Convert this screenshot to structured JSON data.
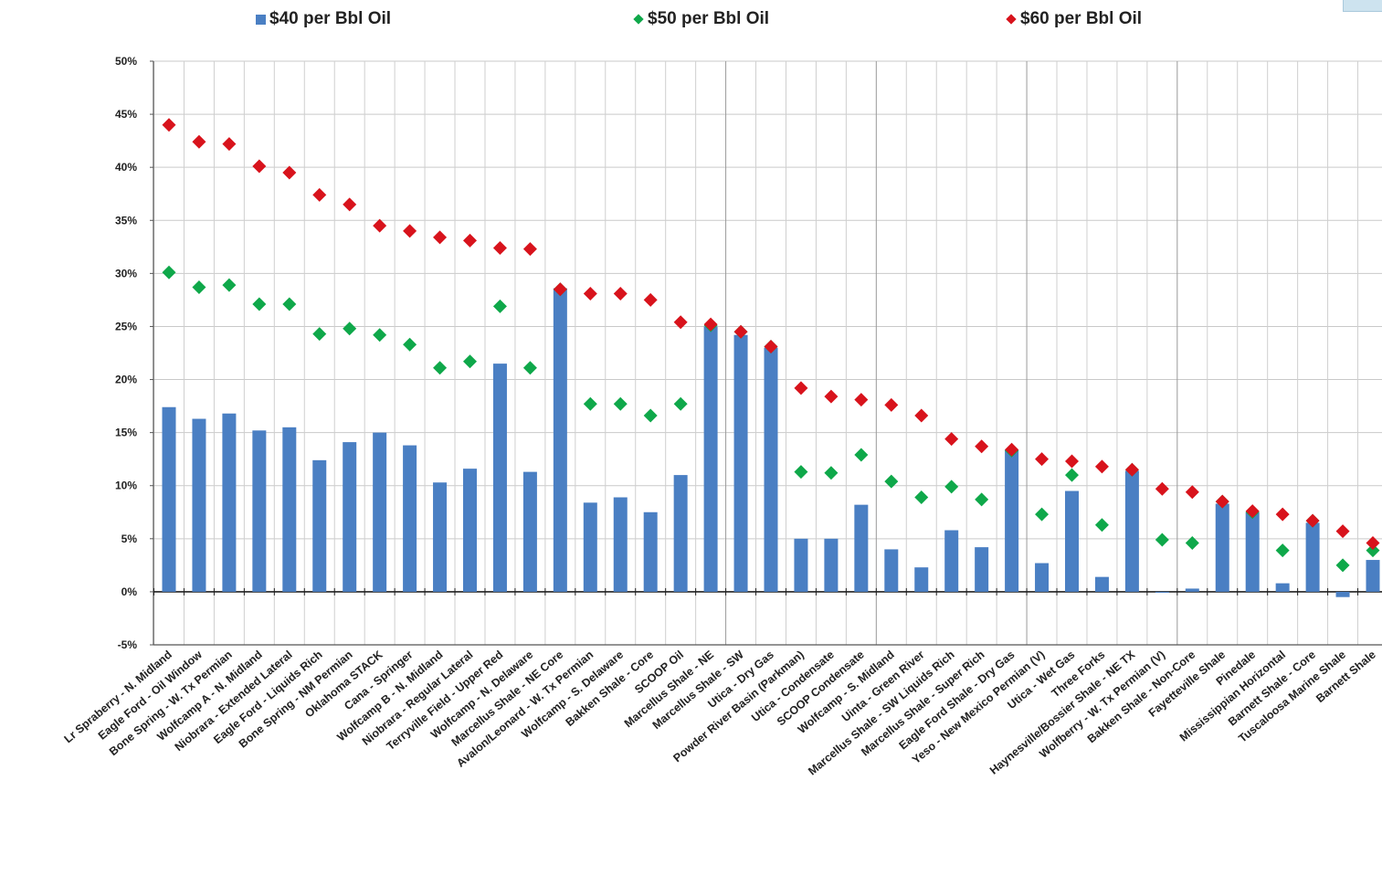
{
  "chart_data": {
    "type": "bar",
    "title": "",
    "xlabel": "",
    "ylabel": "",
    "ylim": [
      -5,
      50
    ],
    "yticks": [
      -5,
      0,
      5,
      10,
      15,
      20,
      25,
      30,
      35,
      40,
      45,
      50
    ],
    "ytick_labels": [
      "-5%",
      "0%",
      "5%",
      "10%",
      "15%",
      "20%",
      "25%",
      "30%",
      "35%",
      "40%",
      "45%",
      "50%"
    ],
    "grid": true,
    "legend_position": "top",
    "categories": [
      "Lr Spraberry - N. Midland",
      "Eagle Ford - Oil Window",
      "Bone Spring - W. Tx Permian",
      "Wolfcamp A - N. Midland",
      "Niobrara - Extended Lateral",
      "Eagle Ford - Liquids Rich",
      "Bone Spring - NM Permian",
      "Oklahoma STACK",
      "Cana - Springer",
      "Wolfcamp B - N. Midland",
      "Niobrara - Regular Lateral",
      "Terryville Field - Upper Red",
      "Wolfcamp - N. Delaware",
      "Marcellus Shale - NE Core",
      "Avalon/Leonard - W. Tx Permian",
      "Wolfcamp - S. Delaware",
      "Bakken Shale - Core",
      "SCOOP Oil",
      "Marcellus Shale - NE",
      "Marcellus Shale - SW",
      "Utica - Dry Gas",
      "Powder River Basin (Parkman)",
      "Utica - Condensate",
      "SCOOP Condensate",
      "Wolfcamp - S. Midland",
      "Uinta - Green River",
      "Marcellus Shale - SW Liquids Rich",
      "Marcellus Shale - Super Rich",
      "Eagle Ford Shale - Dry Gas",
      "Yeso - New Mexico Permian (V)",
      "Utica - Wet Gas",
      "Three Forks",
      "Haynesville/Bossier Shale - NE TX",
      "Wolfberry - W. Tx Permian (V)",
      "Bakken Shale - Non-Core",
      "Fayetteville Shale",
      "Pinedale",
      "Mississippian Horizontal",
      "Barnett Shale - Core",
      "Tuscaloosa Marine Shale",
      "Barnett Shale"
    ],
    "series": [
      {
        "name": "$40 per Bbl Oil",
        "marker": "bar",
        "color": "#4a7fc3",
        "values": [
          17.4,
          16.3,
          16.8,
          15.2,
          15.5,
          12.4,
          14.1,
          15.0,
          13.8,
          10.3,
          11.6,
          21.5,
          11.3,
          28.6,
          8.4,
          8.9,
          7.5,
          11.0,
          25.0,
          24.2,
          23.0,
          5.0,
          5.0,
          8.2,
          4.0,
          2.3,
          5.8,
          4.2,
          13.4,
          2.7,
          9.5,
          1.4,
          11.4,
          0.0,
          0.3,
          8.3,
          7.5,
          0.8,
          6.5,
          -0.5,
          3.0
        ]
      },
      {
        "name": "$50 per Bbl Oil",
        "marker": "diamond",
        "color": "#0fa84a",
        "values": [
          30.1,
          28.7,
          28.9,
          27.1,
          27.1,
          24.3,
          24.8,
          24.2,
          23.3,
          21.1,
          21.7,
          26.9,
          21.1,
          28.5,
          17.7,
          17.7,
          16.6,
          17.7,
          25.1,
          24.5,
          23.1,
          11.3,
          11.2,
          12.9,
          10.4,
          8.9,
          9.9,
          8.7,
          13.3,
          7.3,
          11.0,
          6.3,
          11.5,
          4.9,
          4.6,
          8.5,
          7.5,
          3.9,
          6.7,
          2.5,
          3.9
        ]
      },
      {
        "name": "$60 per Bbl Oil",
        "marker": "diamond",
        "color": "#d8131c",
        "values": [
          44.0,
          42.4,
          42.2,
          40.1,
          39.5,
          37.4,
          36.5,
          34.5,
          34.0,
          33.4,
          33.1,
          32.4,
          32.3,
          28.5,
          28.1,
          28.1,
          27.5,
          25.4,
          25.2,
          24.5,
          23.1,
          19.2,
          18.4,
          18.1,
          17.6,
          16.6,
          14.4,
          13.7,
          13.4,
          12.5,
          12.3,
          11.8,
          11.5,
          9.7,
          9.4,
          8.5,
          7.6,
          7.3,
          6.7,
          5.7,
          4.6
        ]
      }
    ]
  }
}
